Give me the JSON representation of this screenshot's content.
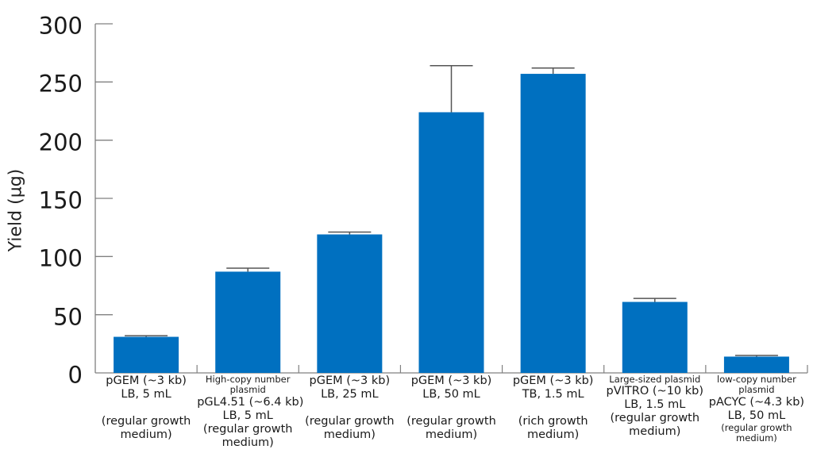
{
  "chart_data": {
    "type": "bar",
    "title": "",
    "xlabel": "",
    "ylabel": "Yield (µg)",
    "ylim": [
      0,
      300
    ],
    "yticks": [
      0,
      50,
      100,
      150,
      200,
      250,
      300
    ],
    "grid": false,
    "legend": null,
    "bar_color": "#0070C0",
    "categories": [
      "pGEM (~3 kb) LB, 5 mL (regular growth medium)",
      "High-copy number plasmid pGL4.51 (~6.4 kb) LB, 5 mL (regular growth medium)",
      "pGEM (~3 kb) LB, 25 mL (regular growth medium)",
      "pGEM (~3 kb) LB, 50 mL (regular growth medium)",
      "pGEM (~3 kb) TB, 1.5 mL (rich growth medium)",
      "Large-sized plasmid pVITRO (~10 kb) LB, 1.5 mL (regular growth medium)",
      "low-copy number plasmid pACYC (~4.3 kb) LB, 50 mL (regular growth medium)"
    ],
    "values": [
      31,
      87,
      119,
      224,
      257,
      61,
      14
    ],
    "error_upper": [
      32,
      90,
      121,
      264,
      262,
      64,
      15
    ],
    "series": [
      {
        "name": "Yield (µg)",
        "values": [
          31,
          87,
          119,
          224,
          257,
          61,
          14
        ],
        "error_plus": [
          1,
          3,
          2,
          40,
          5,
          3,
          1
        ]
      }
    ]
  },
  "axis": {
    "ylabel": "Yield (µg)",
    "ticks": [
      "0",
      "50",
      "100",
      "150",
      "200",
      "250",
      "300"
    ]
  },
  "labels": [
    {
      "lines": [
        {
          "t": "pGEM (~3 kb)",
          "s": "big"
        },
        {
          "t": "LB, 5 mL",
          "s": "big"
        },
        {
          "t": "",
          "s": "spacer"
        },
        {
          "t": "(regular growth",
          "s": "big"
        },
        {
          "t": "medium)",
          "s": "big"
        }
      ]
    },
    {
      "lines": [
        {
          "t": "High-copy number",
          "s": "small"
        },
        {
          "t": "plasmid",
          "s": "small"
        },
        {
          "t": "pGL4.51  (~6.4 kb)",
          "s": "big"
        },
        {
          "t": "LB, 5 mL",
          "s": "big"
        },
        {
          "t": "(regular growth",
          "s": "big"
        },
        {
          "t": "medium)",
          "s": "big"
        }
      ]
    },
    {
      "lines": [
        {
          "t": "pGEM (~3 kb)",
          "s": "big"
        },
        {
          "t": "LB, 25 mL",
          "s": "big"
        },
        {
          "t": "",
          "s": "spacer"
        },
        {
          "t": "(regular growth",
          "s": "big"
        },
        {
          "t": "medium)",
          "s": "big"
        }
      ]
    },
    {
      "lines": [
        {
          "t": "pGEM (~3 kb)",
          "s": "big"
        },
        {
          "t": "LB, 50 mL",
          "s": "big"
        },
        {
          "t": "",
          "s": "spacer"
        },
        {
          "t": "(regular growth",
          "s": "big"
        },
        {
          "t": "medium)",
          "s": "big"
        }
      ]
    },
    {
      "lines": [
        {
          "t": "pGEM (~3 kb)",
          "s": "big"
        },
        {
          "t": "TB, 1.5 mL",
          "s": "big"
        },
        {
          "t": "",
          "s": "spacer"
        },
        {
          "t": "(rich growth",
          "s": "big"
        },
        {
          "t": "medium)",
          "s": "big"
        }
      ]
    },
    {
      "lines": [
        {
          "t": "Large-sized plasmid",
          "s": "small"
        },
        {
          "t": "pVITRO (~10 kb)",
          "s": "big"
        },
        {
          "t": "LB, 1.5 mL",
          "s": "big"
        },
        {
          "t": "(regular growth",
          "s": "big"
        },
        {
          "t": "medium)",
          "s": "big"
        }
      ]
    },
    {
      "lines": [
        {
          "t": "low-copy number",
          "s": "small"
        },
        {
          "t": "plasmid",
          "s": "small"
        },
        {
          "t": "pACYC (~4.3 kb)",
          "s": "big"
        },
        {
          "t": "LB, 50 mL",
          "s": "big"
        },
        {
          "t": "(regular growth",
          "s": "small"
        },
        {
          "t": "medium)",
          "s": "small"
        }
      ]
    }
  ]
}
